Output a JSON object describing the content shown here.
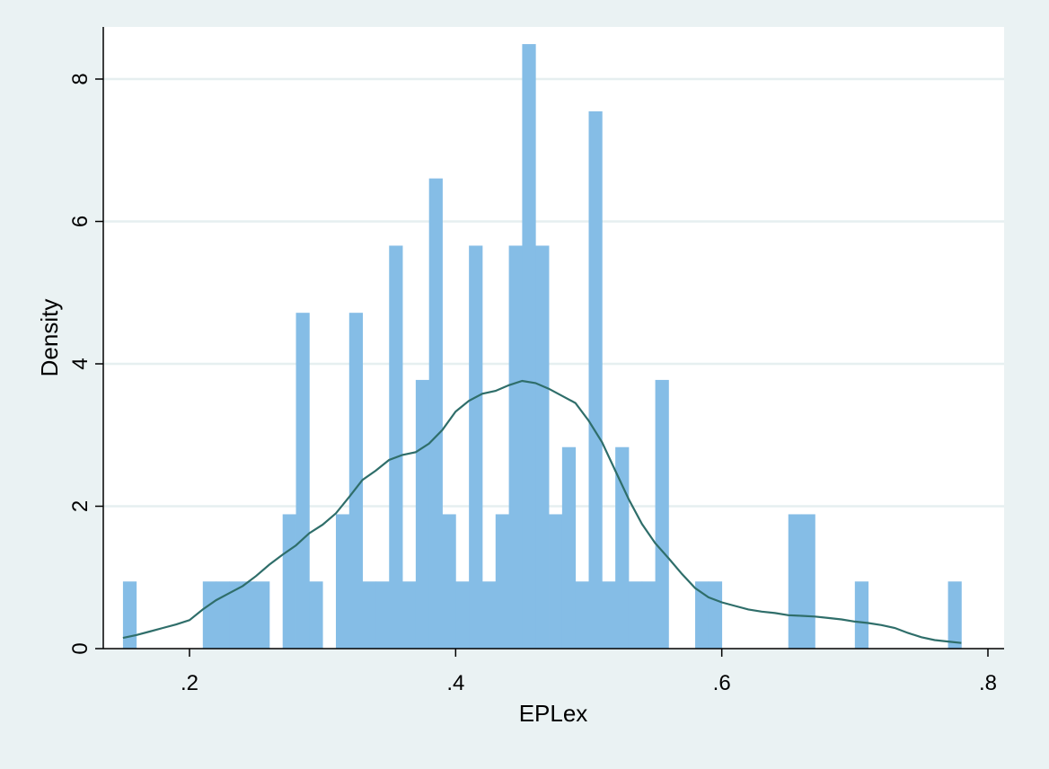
{
  "chart_data": {
    "type": "bar",
    "subtype": "histogram-with-kde",
    "xlabel": "EPLex",
    "ylabel": "Density",
    "xlim": [
      0.13,
      0.805
    ],
    "ylim": [
      0,
      8.6
    ],
    "x_ticks": [
      {
        "value": 0.2,
        "label": ".2"
      },
      {
        "value": 0.4,
        "label": ".4"
      },
      {
        "value": 0.6,
        "label": ".6"
      },
      {
        "value": 0.8,
        "label": ".8"
      }
    ],
    "y_ticks": [
      {
        "value": 0,
        "label": "0"
      },
      {
        "value": 2,
        "label": "2"
      },
      {
        "value": 4,
        "label": "4"
      },
      {
        "value": 6,
        "label": "6"
      },
      {
        "value": 8,
        "label": "8"
      }
    ],
    "grid": "horizontal",
    "bin_width": 0.01,
    "bins": [
      {
        "x": 0.15,
        "density": 0.943
      },
      {
        "x": 0.21,
        "density": 0.943
      },
      {
        "x": 0.22,
        "density": 0.943
      },
      {
        "x": 0.23,
        "density": 0.943
      },
      {
        "x": 0.24,
        "density": 0.943
      },
      {
        "x": 0.25,
        "density": 0.943
      },
      {
        "x": 0.27,
        "density": 1.887
      },
      {
        "x": 0.28,
        "density": 4.717
      },
      {
        "x": 0.29,
        "density": 0.943
      },
      {
        "x": 0.31,
        "density": 1.887
      },
      {
        "x": 0.32,
        "density": 4.717
      },
      {
        "x": 0.33,
        "density": 0.943
      },
      {
        "x": 0.34,
        "density": 0.943
      },
      {
        "x": 0.35,
        "density": 5.66
      },
      {
        "x": 0.36,
        "density": 0.943
      },
      {
        "x": 0.37,
        "density": 3.774
      },
      {
        "x": 0.38,
        "density": 6.604
      },
      {
        "x": 0.39,
        "density": 1.887
      },
      {
        "x": 0.4,
        "density": 0.943
      },
      {
        "x": 0.41,
        "density": 5.66
      },
      {
        "x": 0.42,
        "density": 0.943
      },
      {
        "x": 0.43,
        "density": 1.887
      },
      {
        "x": 0.44,
        "density": 5.66
      },
      {
        "x": 0.45,
        "density": 8.491
      },
      {
        "x": 0.46,
        "density": 5.66
      },
      {
        "x": 0.47,
        "density": 1.887
      },
      {
        "x": 0.48,
        "density": 2.83
      },
      {
        "x": 0.49,
        "density": 0.943
      },
      {
        "x": 0.5,
        "density": 7.547
      },
      {
        "x": 0.51,
        "density": 0.943
      },
      {
        "x": 0.52,
        "density": 2.83
      },
      {
        "x": 0.53,
        "density": 0.943
      },
      {
        "x": 0.54,
        "density": 0.943
      },
      {
        "x": 0.55,
        "density": 3.774
      },
      {
        "x": 0.58,
        "density": 0.943
      },
      {
        "x": 0.59,
        "density": 0.943
      },
      {
        "x": 0.65,
        "density": 1.887
      },
      {
        "x": 0.66,
        "density": 1.887
      },
      {
        "x": 0.7,
        "density": 0.943
      },
      {
        "x": 0.77,
        "density": 0.943
      }
    ],
    "kde": [
      [
        0.15,
        0.15
      ],
      [
        0.16,
        0.19
      ],
      [
        0.17,
        0.24
      ],
      [
        0.18,
        0.29
      ],
      [
        0.19,
        0.34
      ],
      [
        0.2,
        0.4
      ],
      [
        0.21,
        0.55
      ],
      [
        0.22,
        0.68
      ],
      [
        0.23,
        0.78
      ],
      [
        0.24,
        0.88
      ],
      [
        0.25,
        1.02
      ],
      [
        0.26,
        1.18
      ],
      [
        0.27,
        1.32
      ],
      [
        0.28,
        1.45
      ],
      [
        0.29,
        1.62
      ],
      [
        0.3,
        1.74
      ],
      [
        0.31,
        1.9
      ],
      [
        0.32,
        2.13
      ],
      [
        0.33,
        2.37
      ],
      [
        0.34,
        2.5
      ],
      [
        0.35,
        2.65
      ],
      [
        0.36,
        2.72
      ],
      [
        0.37,
        2.76
      ],
      [
        0.38,
        2.88
      ],
      [
        0.39,
        3.07
      ],
      [
        0.4,
        3.33
      ],
      [
        0.41,
        3.48
      ],
      [
        0.42,
        3.58
      ],
      [
        0.43,
        3.62
      ],
      [
        0.44,
        3.7
      ],
      [
        0.45,
        3.76
      ],
      [
        0.46,
        3.73
      ],
      [
        0.47,
        3.65
      ],
      [
        0.48,
        3.55
      ],
      [
        0.49,
        3.45
      ],
      [
        0.5,
        3.2
      ],
      [
        0.51,
        2.9
      ],
      [
        0.52,
        2.5
      ],
      [
        0.53,
        2.1
      ],
      [
        0.54,
        1.75
      ],
      [
        0.55,
        1.48
      ],
      [
        0.56,
        1.27
      ],
      [
        0.57,
        1.05
      ],
      [
        0.58,
        0.85
      ],
      [
        0.59,
        0.72
      ],
      [
        0.6,
        0.65
      ],
      [
        0.61,
        0.6
      ],
      [
        0.62,
        0.55
      ],
      [
        0.63,
        0.52
      ],
      [
        0.64,
        0.5
      ],
      [
        0.65,
        0.47
      ],
      [
        0.66,
        0.46
      ],
      [
        0.67,
        0.45
      ],
      [
        0.68,
        0.43
      ],
      [
        0.69,
        0.41
      ],
      [
        0.7,
        0.38
      ],
      [
        0.71,
        0.36
      ],
      [
        0.72,
        0.33
      ],
      [
        0.73,
        0.29
      ],
      [
        0.74,
        0.22
      ],
      [
        0.75,
        0.16
      ],
      [
        0.76,
        0.12
      ],
      [
        0.77,
        0.1
      ],
      [
        0.78,
        0.08
      ]
    ],
    "colors": {
      "background": "#eaf2f3",
      "plot_area": "#ffffff",
      "bars": "#85bde6",
      "kde_line": "#2f6e6a",
      "grid": "#e6eff0",
      "axis": "#000000"
    }
  }
}
